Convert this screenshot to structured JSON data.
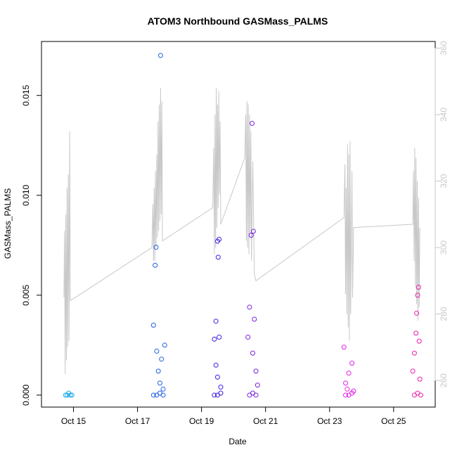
{
  "chart_data": {
    "type": "scatter",
    "title": "ATOM3 Northbound GASMass_PALMS",
    "xlabel": "Date",
    "ylabel": "GASMass_PALMS",
    "x_ticks": [
      "Oct 15",
      "Oct 17",
      "Oct 19",
      "Oct 21",
      "Oct 23",
      "Oct 25"
    ],
    "x_tick_values": [
      15,
      17,
      19,
      21,
      23,
      25
    ],
    "xlim": [
      14.0,
      26.3
    ],
    "ylim": [
      -0.0006,
      0.0177
    ],
    "y_ticks": [
      0.0,
      0.005,
      0.01,
      0.015
    ],
    "y_tick_labels": [
      "0.000",
      "0.005",
      "0.010",
      "0.015"
    ],
    "right_axis": {
      "ylim": [
        252,
        362
      ],
      "ticks": [
        260,
        280,
        300,
        320,
        340,
        360
      ],
      "color": "#c8c8c8"
    },
    "grid": false,
    "series": [
      {
        "values": [
          {
            "x": 14.75,
            "y": 0.0
          },
          {
            "x": 14.8,
            "y": 0.0
          },
          {
            "x": 14.85,
            "y": 0.0001
          },
          {
            "x": 14.9,
            "y": 0.0
          },
          {
            "x": 14.95,
            "y": 0.0
          }
        ],
        "color": "#1aa7e8"
      },
      {
        "values": [
          {
            "x": 17.5,
            "y": 0.0035
          },
          {
            "x": 17.55,
            "y": 0.0065
          },
          {
            "x": 17.58,
            "y": 0.0074
          },
          {
            "x": 17.6,
            "y": 0.0022
          },
          {
            "x": 17.65,
            "y": 0.0012
          },
          {
            "x": 17.7,
            "y": 0.0006
          },
          {
            "x": 17.75,
            "y": 0.0018
          },
          {
            "x": 17.8,
            "y": 0.0003
          },
          {
            "x": 17.85,
            "y": 0.0025
          },
          {
            "x": 17.72,
            "y": 0.017
          },
          {
            "x": 17.5,
            "y": 0.0
          },
          {
            "x": 17.6,
            "y": 0.0
          },
          {
            "x": 17.7,
            "y": 0.0001
          },
          {
            "x": 17.8,
            "y": 0.0
          }
        ],
        "color": "#1f5fe0"
      },
      {
        "values": [
          {
            "x": 19.4,
            "y": 0.0028
          },
          {
            "x": 19.45,
            "y": 0.0037
          },
          {
            "x": 19.5,
            "y": 0.0077
          },
          {
            "x": 19.52,
            "y": 0.0069
          },
          {
            "x": 19.55,
            "y": 0.0078
          },
          {
            "x": 19.45,
            "y": 0.0015
          },
          {
            "x": 19.5,
            "y": 0.0009
          },
          {
            "x": 19.55,
            "y": 0.0029
          },
          {
            "x": 19.6,
            "y": 0.0004
          },
          {
            "x": 19.4,
            "y": 0.0
          },
          {
            "x": 19.5,
            "y": 0.0
          },
          {
            "x": 19.6,
            "y": 0.0001
          }
        ],
        "color": "#3a1fe0"
      },
      {
        "values": [
          {
            "x": 20.45,
            "y": 0.0029
          },
          {
            "x": 20.5,
            "y": 0.0044
          },
          {
            "x": 20.55,
            "y": 0.008
          },
          {
            "x": 20.58,
            "y": 0.0136
          },
          {
            "x": 20.62,
            "y": 0.0082
          },
          {
            "x": 20.6,
            "y": 0.0021
          },
          {
            "x": 20.65,
            "y": 0.0038
          },
          {
            "x": 20.7,
            "y": 0.0012
          },
          {
            "x": 20.75,
            "y": 0.0005
          },
          {
            "x": 20.5,
            "y": 0.0
          },
          {
            "x": 20.6,
            "y": 0.0001
          },
          {
            "x": 20.7,
            "y": 0.0
          }
        ],
        "color": "#7a1fe0"
      },
      {
        "values": [
          {
            "x": 23.45,
            "y": 0.0024
          },
          {
            "x": 23.5,
            "y": 0.0006
          },
          {
            "x": 23.55,
            "y": 0.0003
          },
          {
            "x": 23.6,
            "y": 0.0011
          },
          {
            "x": 23.7,
            "y": 0.0016
          },
          {
            "x": 23.75,
            "y": 0.0002
          },
          {
            "x": 23.5,
            "y": 0.0
          },
          {
            "x": 23.6,
            "y": 0.0
          },
          {
            "x": 23.7,
            "y": 0.0001
          }
        ],
        "color": "#e01fe8"
      },
      {
        "values": [
          {
            "x": 25.6,
            "y": 0.0012
          },
          {
            "x": 25.65,
            "y": 0.0021
          },
          {
            "x": 25.7,
            "y": 0.0031
          },
          {
            "x": 25.72,
            "y": 0.0041
          },
          {
            "x": 25.75,
            "y": 0.005
          },
          {
            "x": 25.78,
            "y": 0.0054
          },
          {
            "x": 25.8,
            "y": 0.0027
          },
          {
            "x": 25.82,
            "y": 0.0008
          },
          {
            "x": 25.65,
            "y": 0.0
          },
          {
            "x": 25.75,
            "y": 0.0001
          },
          {
            "x": 25.85,
            "y": 0.0
          }
        ],
        "color": "#e81fa8"
      }
    ],
    "right_series": {
      "color": "#c8c8c8",
      "values": [
        {
          "x": 14.7,
          "y": 285
        },
        {
          "x": 14.72,
          "y": 305
        },
        {
          "x": 14.74,
          "y": 262
        },
        {
          "x": 14.76,
          "y": 310
        },
        {
          "x": 14.78,
          "y": 266
        },
        {
          "x": 14.8,
          "y": 318
        },
        {
          "x": 14.82,
          "y": 270
        },
        {
          "x": 14.84,
          "y": 322
        },
        {
          "x": 14.86,
          "y": 272
        },
        {
          "x": 14.88,
          "y": 335
        },
        {
          "x": 14.9,
          "y": 284
        },
        {
          "x": 17.45,
          "y": 300
        },
        {
          "x": 17.48,
          "y": 313
        },
        {
          "x": 17.5,
          "y": 296
        },
        {
          "x": 17.52,
          "y": 318
        },
        {
          "x": 17.54,
          "y": 296
        },
        {
          "x": 17.56,
          "y": 323
        },
        {
          "x": 17.58,
          "y": 300
        },
        {
          "x": 17.6,
          "y": 328
        },
        {
          "x": 17.62,
          "y": 303
        },
        {
          "x": 17.64,
          "y": 338
        },
        {
          "x": 17.66,
          "y": 305
        },
        {
          "x": 17.68,
          "y": 343
        },
        {
          "x": 17.7,
          "y": 308
        },
        {
          "x": 17.72,
          "y": 348
        },
        {
          "x": 17.74,
          "y": 310
        },
        {
          "x": 17.76,
          "y": 344
        },
        {
          "x": 17.78,
          "y": 302
        },
        {
          "x": 19.35,
          "y": 312
        },
        {
          "x": 19.38,
          "y": 330
        },
        {
          "x": 19.4,
          "y": 298
        },
        {
          "x": 19.42,
          "y": 340
        },
        {
          "x": 19.44,
          "y": 300
        },
        {
          "x": 19.46,
          "y": 348
        },
        {
          "x": 19.48,
          "y": 306
        },
        {
          "x": 19.5,
          "y": 343
        },
        {
          "x": 19.52,
          "y": 312
        },
        {
          "x": 19.54,
          "y": 347
        },
        {
          "x": 19.56,
          "y": 316
        },
        {
          "x": 19.58,
          "y": 338
        },
        {
          "x": 19.6,
          "y": 307
        },
        {
          "x": 20.35,
          "y": 327
        },
        {
          "x": 20.38,
          "y": 340
        },
        {
          "x": 20.4,
          "y": 302
        },
        {
          "x": 20.42,
          "y": 344
        },
        {
          "x": 20.44,
          "y": 300
        },
        {
          "x": 20.46,
          "y": 343
        },
        {
          "x": 20.48,
          "y": 298
        },
        {
          "x": 20.5,
          "y": 340
        },
        {
          "x": 20.52,
          "y": 304
        },
        {
          "x": 20.54,
          "y": 335
        },
        {
          "x": 20.56,
          "y": 296
        },
        {
          "x": 20.6,
          "y": 326
        },
        {
          "x": 20.65,
          "y": 292
        },
        {
          "x": 20.7,
          "y": 290
        },
        {
          "x": 23.45,
          "y": 309
        },
        {
          "x": 23.48,
          "y": 325
        },
        {
          "x": 23.5,
          "y": 286
        },
        {
          "x": 23.52,
          "y": 318
        },
        {
          "x": 23.54,
          "y": 280
        },
        {
          "x": 23.56,
          "y": 331
        },
        {
          "x": 23.58,
          "y": 276
        },
        {
          "x": 23.6,
          "y": 328
        },
        {
          "x": 23.62,
          "y": 272
        },
        {
          "x": 23.64,
          "y": 332
        },
        {
          "x": 23.66,
          "y": 280
        },
        {
          "x": 23.7,
          "y": 323
        },
        {
          "x": 23.72,
          "y": 285
        },
        {
          "x": 23.75,
          "y": 306
        },
        {
          "x": 25.6,
          "y": 307
        },
        {
          "x": 25.62,
          "y": 323
        },
        {
          "x": 25.64,
          "y": 296
        },
        {
          "x": 25.66,
          "y": 330
        },
        {
          "x": 25.68,
          "y": 288
        },
        {
          "x": 25.7,
          "y": 327
        },
        {
          "x": 25.72,
          "y": 283
        },
        {
          "x": 25.74,
          "y": 320
        },
        {
          "x": 25.76,
          "y": 278
        },
        {
          "x": 25.78,
          "y": 315
        },
        {
          "x": 25.8,
          "y": 282
        },
        {
          "x": 25.82,
          "y": 306
        }
      ]
    }
  }
}
